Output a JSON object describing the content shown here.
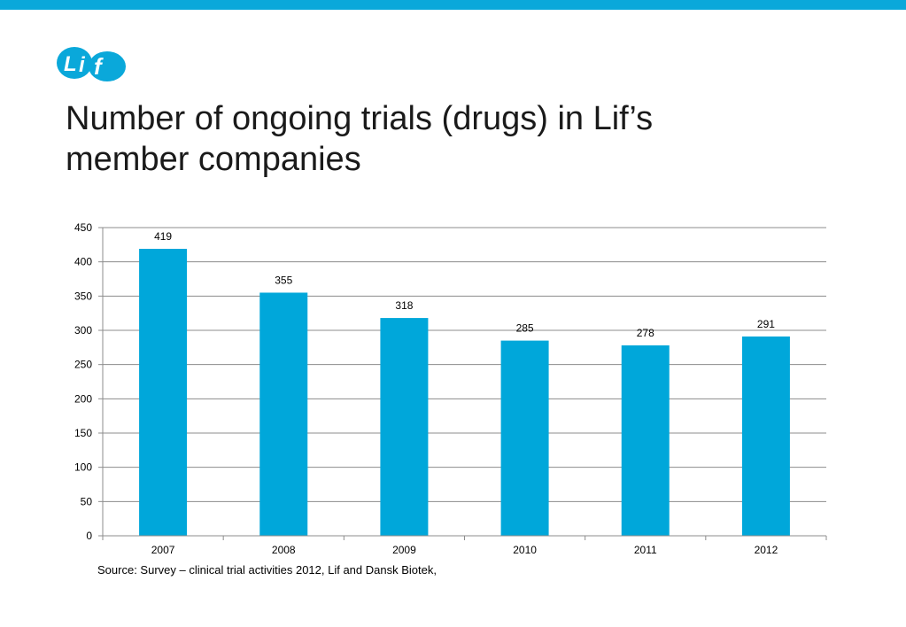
{
  "brand": {
    "logo_text": "Lif",
    "accent_color": "#0aa8da"
  },
  "slide": {
    "title_line1": "Number of ongoing trials (drugs) in Lif’s",
    "title_line2": "member companies",
    "source": "Source: Survey – clinical trial activities 2012, Lif and Dansk Biotek,"
  },
  "chart_data": {
    "type": "bar",
    "title": "",
    "xlabel": "",
    "ylabel": "",
    "categories": [
      "2007",
      "2008",
      "2009",
      "2010",
      "2011",
      "2012"
    ],
    "values": [
      419,
      355,
      318,
      285,
      278,
      291
    ],
    "data_labels": [
      "419",
      "355",
      "318",
      "285",
      "278",
      "291"
    ],
    "ylim": [
      0,
      450
    ],
    "yticks": [
      0,
      50,
      100,
      150,
      200,
      250,
      300,
      350,
      400,
      450
    ],
    "grid": true,
    "legend": "none",
    "bar_color": "#00a7da"
  }
}
